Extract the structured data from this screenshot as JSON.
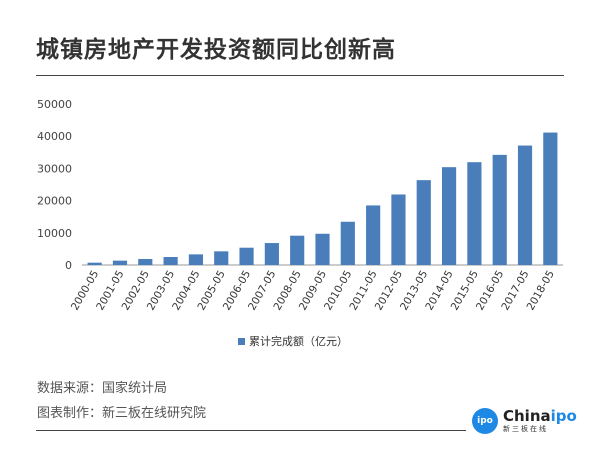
{
  "title": "城镇房地产开发投资额同比创新高",
  "footer": {
    "source": "数据来源：国家统计局",
    "maker": "图表制作：新三板在线研究院"
  },
  "logo": {
    "name_a": "China",
    "name_b": "ipo",
    "sub": "新三板在线",
    "badge": "ipo"
  },
  "colors": {
    "bar": "#4a7ebb"
  },
  "chart_data": {
    "type": "bar",
    "title": "城镇房地产开发投资额同比创新高",
    "categories": [
      "2000-05",
      "2001-05",
      "2002-05",
      "2003-05",
      "2004-05",
      "2005-05",
      "2006-05",
      "2007-05",
      "2008-05",
      "2009-05",
      "2010-05",
      "2011-05",
      "2012-05",
      "2013-05",
      "2014-05",
      "2015-05",
      "2016-05",
      "2017-05",
      "2018-05"
    ],
    "series": [
      {
        "name": "累计完成额（亿元）",
        "values": [
          720,
          1350,
          1860,
          2480,
          3300,
          4240,
          5370,
          6820,
          9100,
          9700,
          13430,
          18500,
          21900,
          26350,
          30380,
          31930,
          34200,
          37100,
          41130
        ]
      }
    ],
    "yticks": [
      0,
      10000,
      20000,
      30000,
      40000,
      50000
    ],
    "ylim": [
      0,
      50000
    ],
    "xlabel": "",
    "ylabel": "",
    "grid": false,
    "legend": "bottom"
  }
}
